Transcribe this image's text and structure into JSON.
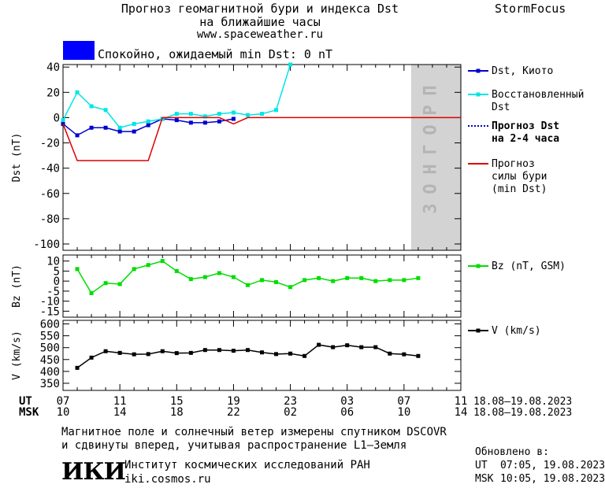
{
  "header": {
    "title_line1": "Прогноз геомагнитной бури и индекса Dst",
    "title_line2": "на ближайшие часы",
    "url": "www.spaceweather.ru",
    "brand": "StormFocus"
  },
  "status": {
    "text": "Спокойно, ожидаемый min Dst: 0 nT",
    "color": "#0000ff"
  },
  "chart_data": [
    {
      "type": "line",
      "ylabel": "Dst (nT)",
      "ylim": [
        -105,
        42
      ],
      "yticks": [
        40,
        20,
        0,
        -20,
        -40,
        -60,
        -80,
        -100
      ],
      "x": [
        0,
        1,
        2,
        3,
        4,
        5,
        6,
        7,
        8,
        9,
        10,
        11,
        12,
        13,
        14,
        15,
        16,
        17,
        18,
        19,
        20,
        21,
        22,
        23,
        24,
        25,
        26,
        27,
        28
      ],
      "xlim": [
        0,
        28
      ],
      "forecast_zone": {
        "start": 24.5,
        "end": 28,
        "label": "ПРОГНОЗ",
        "color": "#d3d3d3"
      },
      "series": [
        {
          "name": "Dst, Киото",
          "color": "#0000cc",
          "marker": "square",
          "points": [
            [
              0,
              -5
            ],
            [
              1,
              -14
            ],
            [
              2,
              -8
            ],
            [
              3,
              -8
            ],
            [
              4,
              -11
            ],
            [
              5,
              -11
            ],
            [
              6,
              -6
            ],
            [
              7,
              -1
            ],
            [
              8,
              -2
            ],
            [
              9,
              -4
            ],
            [
              10,
              -4
            ],
            [
              11,
              -3
            ],
            [
              12,
              -1
            ]
          ]
        },
        {
          "name": "Восстановленный Dst",
          "color": "#00e5e5",
          "marker": "square",
          "points": [
            [
              0,
              -2
            ],
            [
              1,
              20
            ],
            [
              2,
              9
            ],
            [
              3,
              6
            ],
            [
              4,
              -8
            ],
            [
              5,
              -5
            ],
            [
              6,
              -3
            ],
            [
              7,
              -1
            ],
            [
              8,
              3
            ],
            [
              9,
              3
            ],
            [
              10,
              1
            ],
            [
              11,
              3
            ],
            [
              12,
              4
            ],
            [
              13,
              2
            ],
            [
              14,
              3
            ],
            [
              15,
              6
            ],
            [
              16,
              42
            ]
          ]
        },
        {
          "name": "Прогноз Dst на 2-4 часа",
          "color": "#0000cc",
          "dash": true,
          "points": []
        },
        {
          "name": "Прогноз силы бури (min Dst)",
          "color": "#dd0000",
          "marker": "none",
          "points": [
            [
              0,
              -5
            ],
            [
              1,
              -34
            ],
            [
              6,
              -34
            ],
            [
              7,
              0
            ],
            [
              11,
              0
            ],
            [
              12,
              -5
            ],
            [
              13,
              0
            ],
            [
              28,
              0
            ]
          ]
        }
      ]
    },
    {
      "type": "line",
      "ylabel": "Bz (nT)",
      "ylim": [
        -18,
        13
      ],
      "yticks": [
        10,
        5,
        0,
        -5,
        -10,
        -15
      ],
      "x": [
        0,
        1,
        2,
        3,
        4,
        5,
        6,
        7,
        8,
        9,
        10,
        11,
        12,
        13,
        14,
        15,
        16,
        17,
        18,
        19,
        20,
        21,
        22,
        23,
        24,
        25,
        26,
        27,
        28
      ],
      "series": [
        {
          "name": "Bz (nT, GSM)",
          "color": "#00dd00",
          "marker": "square",
          "points": [
            [
              1,
              6
            ],
            [
              2,
              -6
            ],
            [
              3,
              -1
            ],
            [
              4,
              -1.5
            ],
            [
              5,
              6
            ],
            [
              6,
              8
            ],
            [
              7,
              10
            ],
            [
              8,
              5
            ],
            [
              9,
              1
            ],
            [
              10,
              2
            ],
            [
              11,
              4
            ],
            [
              12,
              2
            ],
            [
              13,
              -2
            ],
            [
              14,
              0.5
            ],
            [
              15,
              -0.5
            ],
            [
              16,
              -3
            ],
            [
              17,
              0.5
            ],
            [
              18,
              1.5
            ],
            [
              19,
              0
            ],
            [
              20,
              1.5
            ],
            [
              21,
              1.5
            ],
            [
              22,
              0
            ],
            [
              23,
              0.5
            ],
            [
              24,
              0.5
            ],
            [
              25,
              1.5
            ]
          ]
        }
      ]
    },
    {
      "type": "line",
      "ylabel": "V (km/s)",
      "ylim": [
        320,
        615
      ],
      "yticks": [
        600,
        550,
        500,
        450,
        400,
        350
      ],
      "x": [
        0,
        1,
        2,
        3,
        4,
        5,
        6,
        7,
        8,
        9,
        10,
        11,
        12,
        13,
        14,
        15,
        16,
        17,
        18,
        19,
        20,
        21,
        22,
        23,
        24,
        25,
        26,
        27,
        28
      ],
      "series": [
        {
          "name": "V (km/s)",
          "color": "#000000",
          "marker": "square",
          "points": [
            [
              1,
              415
            ],
            [
              2,
              458
            ],
            [
              3,
              485
            ],
            [
              4,
              478
            ],
            [
              5,
              472
            ],
            [
              6,
              473
            ],
            [
              7,
              485
            ],
            [
              8,
              477
            ],
            [
              9,
              478
            ],
            [
              10,
              490
            ],
            [
              11,
              490
            ],
            [
              12,
              487
            ],
            [
              13,
              490
            ],
            [
              14,
              480
            ],
            [
              15,
              473
            ],
            [
              16,
              475
            ],
            [
              17,
              465
            ],
            [
              18,
              512
            ],
            [
              19,
              502
            ],
            [
              20,
              510
            ],
            [
              21,
              502
            ],
            [
              22,
              502
            ],
            [
              23,
              475
            ],
            [
              24,
              472
            ],
            [
              25,
              465
            ]
          ]
        }
      ]
    }
  ],
  "time_axis": {
    "ut_label": "UT",
    "msk_label": "MSK",
    "ut_ticks": [
      "07",
      "11",
      "15",
      "19",
      "23",
      "03",
      "07",
      "11"
    ],
    "msk_ticks": [
      "10",
      "14",
      "18",
      "22",
      "02",
      "06",
      "10",
      "14"
    ],
    "ut_range": "18.08–19.08.2023",
    "msk_range": "18.08–19.08.2023"
  },
  "footer": {
    "line1": "Магнитное поле и солнечный ветер измерены спутником DSCOVR",
    "line2": "и сдвинуты вперед, учитывая распространение L1–Земля",
    "institute_logo": "ИКИ",
    "institute_name": "Институт космических исследований РАН",
    "institute_url": "iki.cosmos.ru",
    "updated_label": "Обновлено в:",
    "updated_ut_label": "UT",
    "updated_ut": "07:05, 19.08.2023",
    "updated_msk_label": "MSK",
    "updated_msk": "10:05, 19.08.2023"
  }
}
